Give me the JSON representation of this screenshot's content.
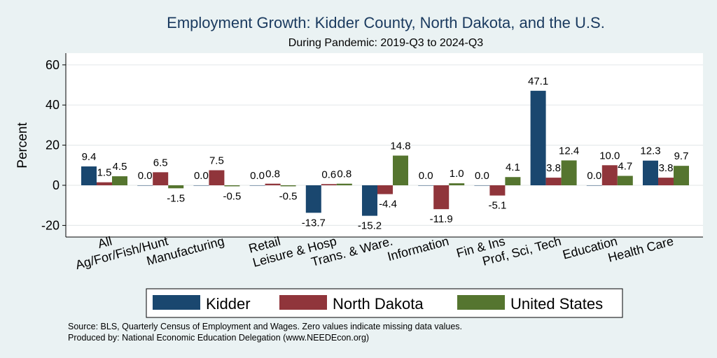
{
  "chart_data": {
    "type": "bar",
    "title": "Employment Growth: Kidder County, North Dakota, and the U.S.",
    "subtitle": "During Pandemic: 2019-Q3 to 2024-Q3",
    "ylabel": "Percent",
    "xlabel": "",
    "ylim": [
      -26,
      66
    ],
    "yticks": [
      -20,
      0,
      20,
      40,
      60
    ],
    "ytick_labels": [
      "-20",
      "0",
      "20",
      "40",
      "60"
    ],
    "grid": true,
    "legend_position": "bottom",
    "categories": [
      "All",
      "Ag/For/Fish/Hunt",
      "Manufacturing",
      "Retail",
      "Leisure & Hosp",
      "Trans. & Ware.",
      "Information",
      "Fin & Ins",
      "Prof, Sci, Tech",
      "Education",
      "Health Care"
    ],
    "series": [
      {
        "name": "Kidder",
        "color": "#1a476f",
        "values": [
          9.4,
          0.0,
          0.0,
          0.0,
          -13.7,
          -15.2,
          0.0,
          0.0,
          47.1,
          0.0,
          12.3
        ],
        "labels": [
          "9.4",
          "0.0",
          "0.0",
          "0.0",
          "-13.7",
          "-15.2",
          "0.0",
          "0.0",
          "47.1",
          "0.0",
          "12.3"
        ]
      },
      {
        "name": "North Dakota",
        "color": "#90353b",
        "values": [
          1.5,
          6.5,
          7.5,
          0.8,
          0.6,
          -4.4,
          -11.9,
          -5.1,
          3.8,
          10.0,
          3.8
        ],
        "labels": [
          "1.5",
          "6.5",
          "7.5",
          "0.8",
          "0.6",
          "-4.4",
          "-11.9",
          "-5.1",
          "3.8",
          "10.0",
          "3.8"
        ]
      },
      {
        "name": "United States",
        "color": "#55752f",
        "values": [
          4.5,
          -1.5,
          -0.5,
          -0.5,
          0.8,
          14.8,
          1.0,
          4.1,
          12.4,
          4.7,
          9.7
        ],
        "labels": [
          "4.5",
          "-1.5",
          "-0.5",
          "-0.5",
          "0.8",
          "14.8",
          "1.0",
          "4.1",
          "12.4",
          "4.7",
          "9.7"
        ]
      }
    ],
    "source_lines": [
      "Source: BLS, Quarterly Census of Employment and Wages. Zero values indicate missing data values.",
      "Produced by: National Economic Education Delegation (www.NEEDEcon.org)"
    ]
  }
}
